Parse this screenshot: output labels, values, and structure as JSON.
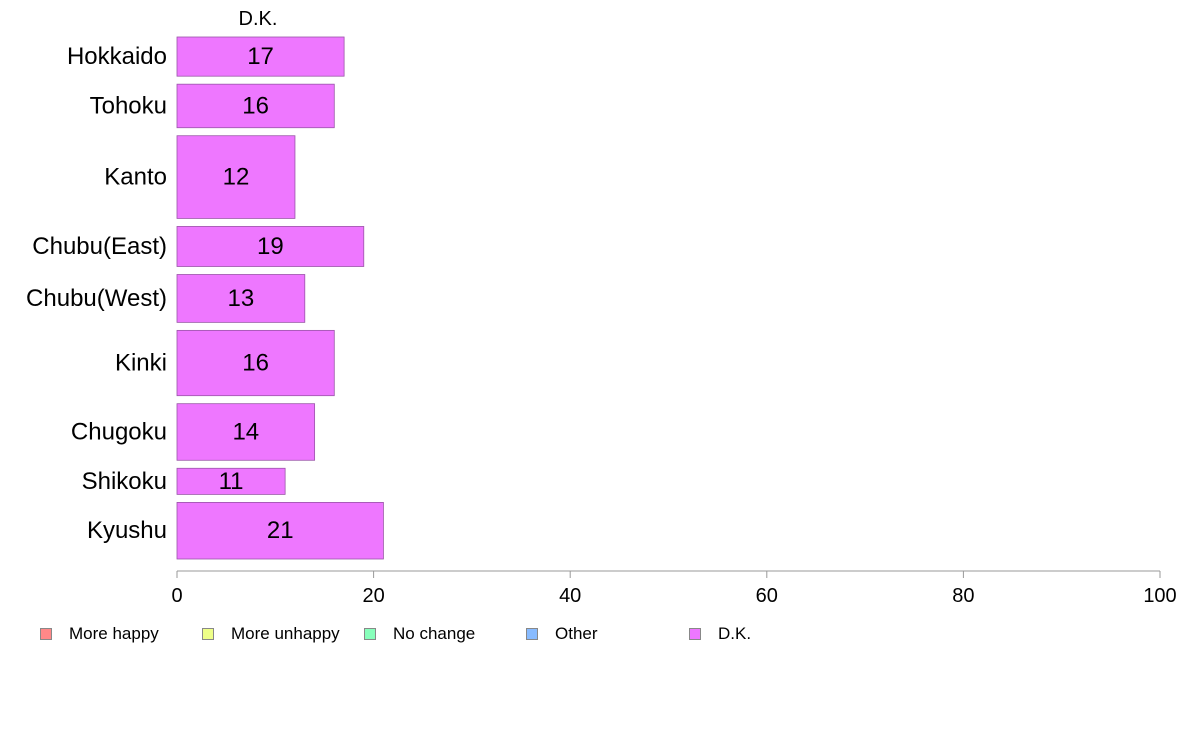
{
  "chart_data": {
    "type": "bar",
    "orientation": "horizontal",
    "series_title": "D.K.",
    "categories": [
      "Hokkaido",
      "Tohoku",
      "Kanto",
      "Chubu(East)",
      "Chubu(West)",
      "Kinki",
      "Chugoku",
      "Shikoku",
      "Kyushu"
    ],
    "category_weights": [
      0.9,
      1.0,
      1.9,
      0.92,
      1.1,
      1.5,
      1.3,
      0.6,
      1.3
    ],
    "values": [
      17,
      16,
      12,
      19,
      13,
      16,
      14,
      11,
      21
    ],
    "value_labels": [
      "17",
      "16",
      "12",
      "19",
      "13",
      "16",
      "14",
      "11",
      "21"
    ],
    "xlim": [
      0,
      100
    ],
    "xticks": [
      "0",
      "20",
      "40",
      "60",
      "80",
      "100"
    ],
    "xtick_values": [
      0,
      20,
      40,
      60,
      80,
      100
    ],
    "bar_color": "#ee77ff",
    "grid": false,
    "legend_position": "bottom",
    "legend": [
      {
        "label": "More happy",
        "color": "#ff8888"
      },
      {
        "label": "More unhappy",
        "color": "#eeff88"
      },
      {
        "label": "No change",
        "color": "#88ffbb"
      },
      {
        "label": "Other",
        "color": "#88bbff"
      },
      {
        "label": "D.K.",
        "color": "#ee77ff"
      }
    ]
  }
}
